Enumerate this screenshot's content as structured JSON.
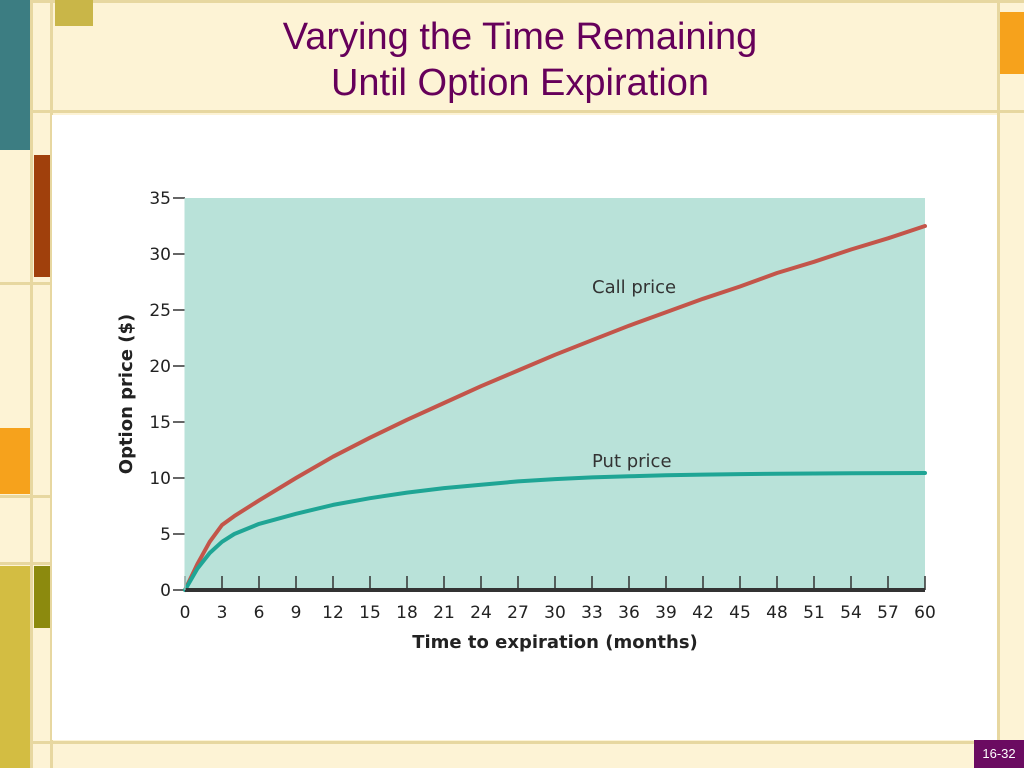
{
  "slide": {
    "title_line1": "Varying the Time Remaining",
    "title_line2": "Until Option Expiration",
    "slide_number": "16-32"
  },
  "colors": {
    "title": "#66005a",
    "plot_background": "#b9e2d9",
    "call_line": "#c3554a",
    "put_line": "#1fa595",
    "axis": "#333333"
  },
  "chart_data": {
    "type": "line",
    "title": "",
    "xlabel": "Time to expiration (months)",
    "ylabel": "Option price ($)",
    "xlim": [
      0,
      60
    ],
    "ylim": [
      0,
      35
    ],
    "xticks": [
      0,
      3,
      6,
      9,
      12,
      15,
      18,
      21,
      24,
      27,
      30,
      33,
      36,
      39,
      42,
      45,
      48,
      51,
      54,
      57,
      60
    ],
    "yticks": [
      0,
      5,
      10,
      15,
      20,
      25,
      30,
      35
    ],
    "grid": false,
    "series": [
      {
        "name": "Call price",
        "x": [
          0,
          1,
          2,
          3,
          4,
          6,
          9,
          12,
          15,
          18,
          21,
          24,
          27,
          30,
          33,
          36,
          39,
          42,
          45,
          48,
          51,
          54,
          57,
          60
        ],
        "y": [
          0,
          2.3,
          4.3,
          5.8,
          6.6,
          8.0,
          10.0,
          11.9,
          13.6,
          15.2,
          16.7,
          18.2,
          19.6,
          21.0,
          22.3,
          23.6,
          24.8,
          26.0,
          27.1,
          28.3,
          29.3,
          30.4,
          31.4,
          32.5
        ]
      },
      {
        "name": "Put price",
        "x": [
          0,
          1,
          2,
          3,
          4,
          6,
          9,
          12,
          15,
          18,
          21,
          24,
          27,
          30,
          33,
          36,
          39,
          42,
          45,
          48,
          51,
          54,
          57,
          60
        ],
        "y": [
          0,
          1.9,
          3.3,
          4.3,
          5.0,
          5.9,
          6.8,
          7.6,
          8.2,
          8.7,
          9.1,
          9.4,
          9.7,
          9.9,
          10.05,
          10.15,
          10.25,
          10.3,
          10.35,
          10.38,
          10.4,
          10.42,
          10.44,
          10.45
        ]
      }
    ]
  }
}
